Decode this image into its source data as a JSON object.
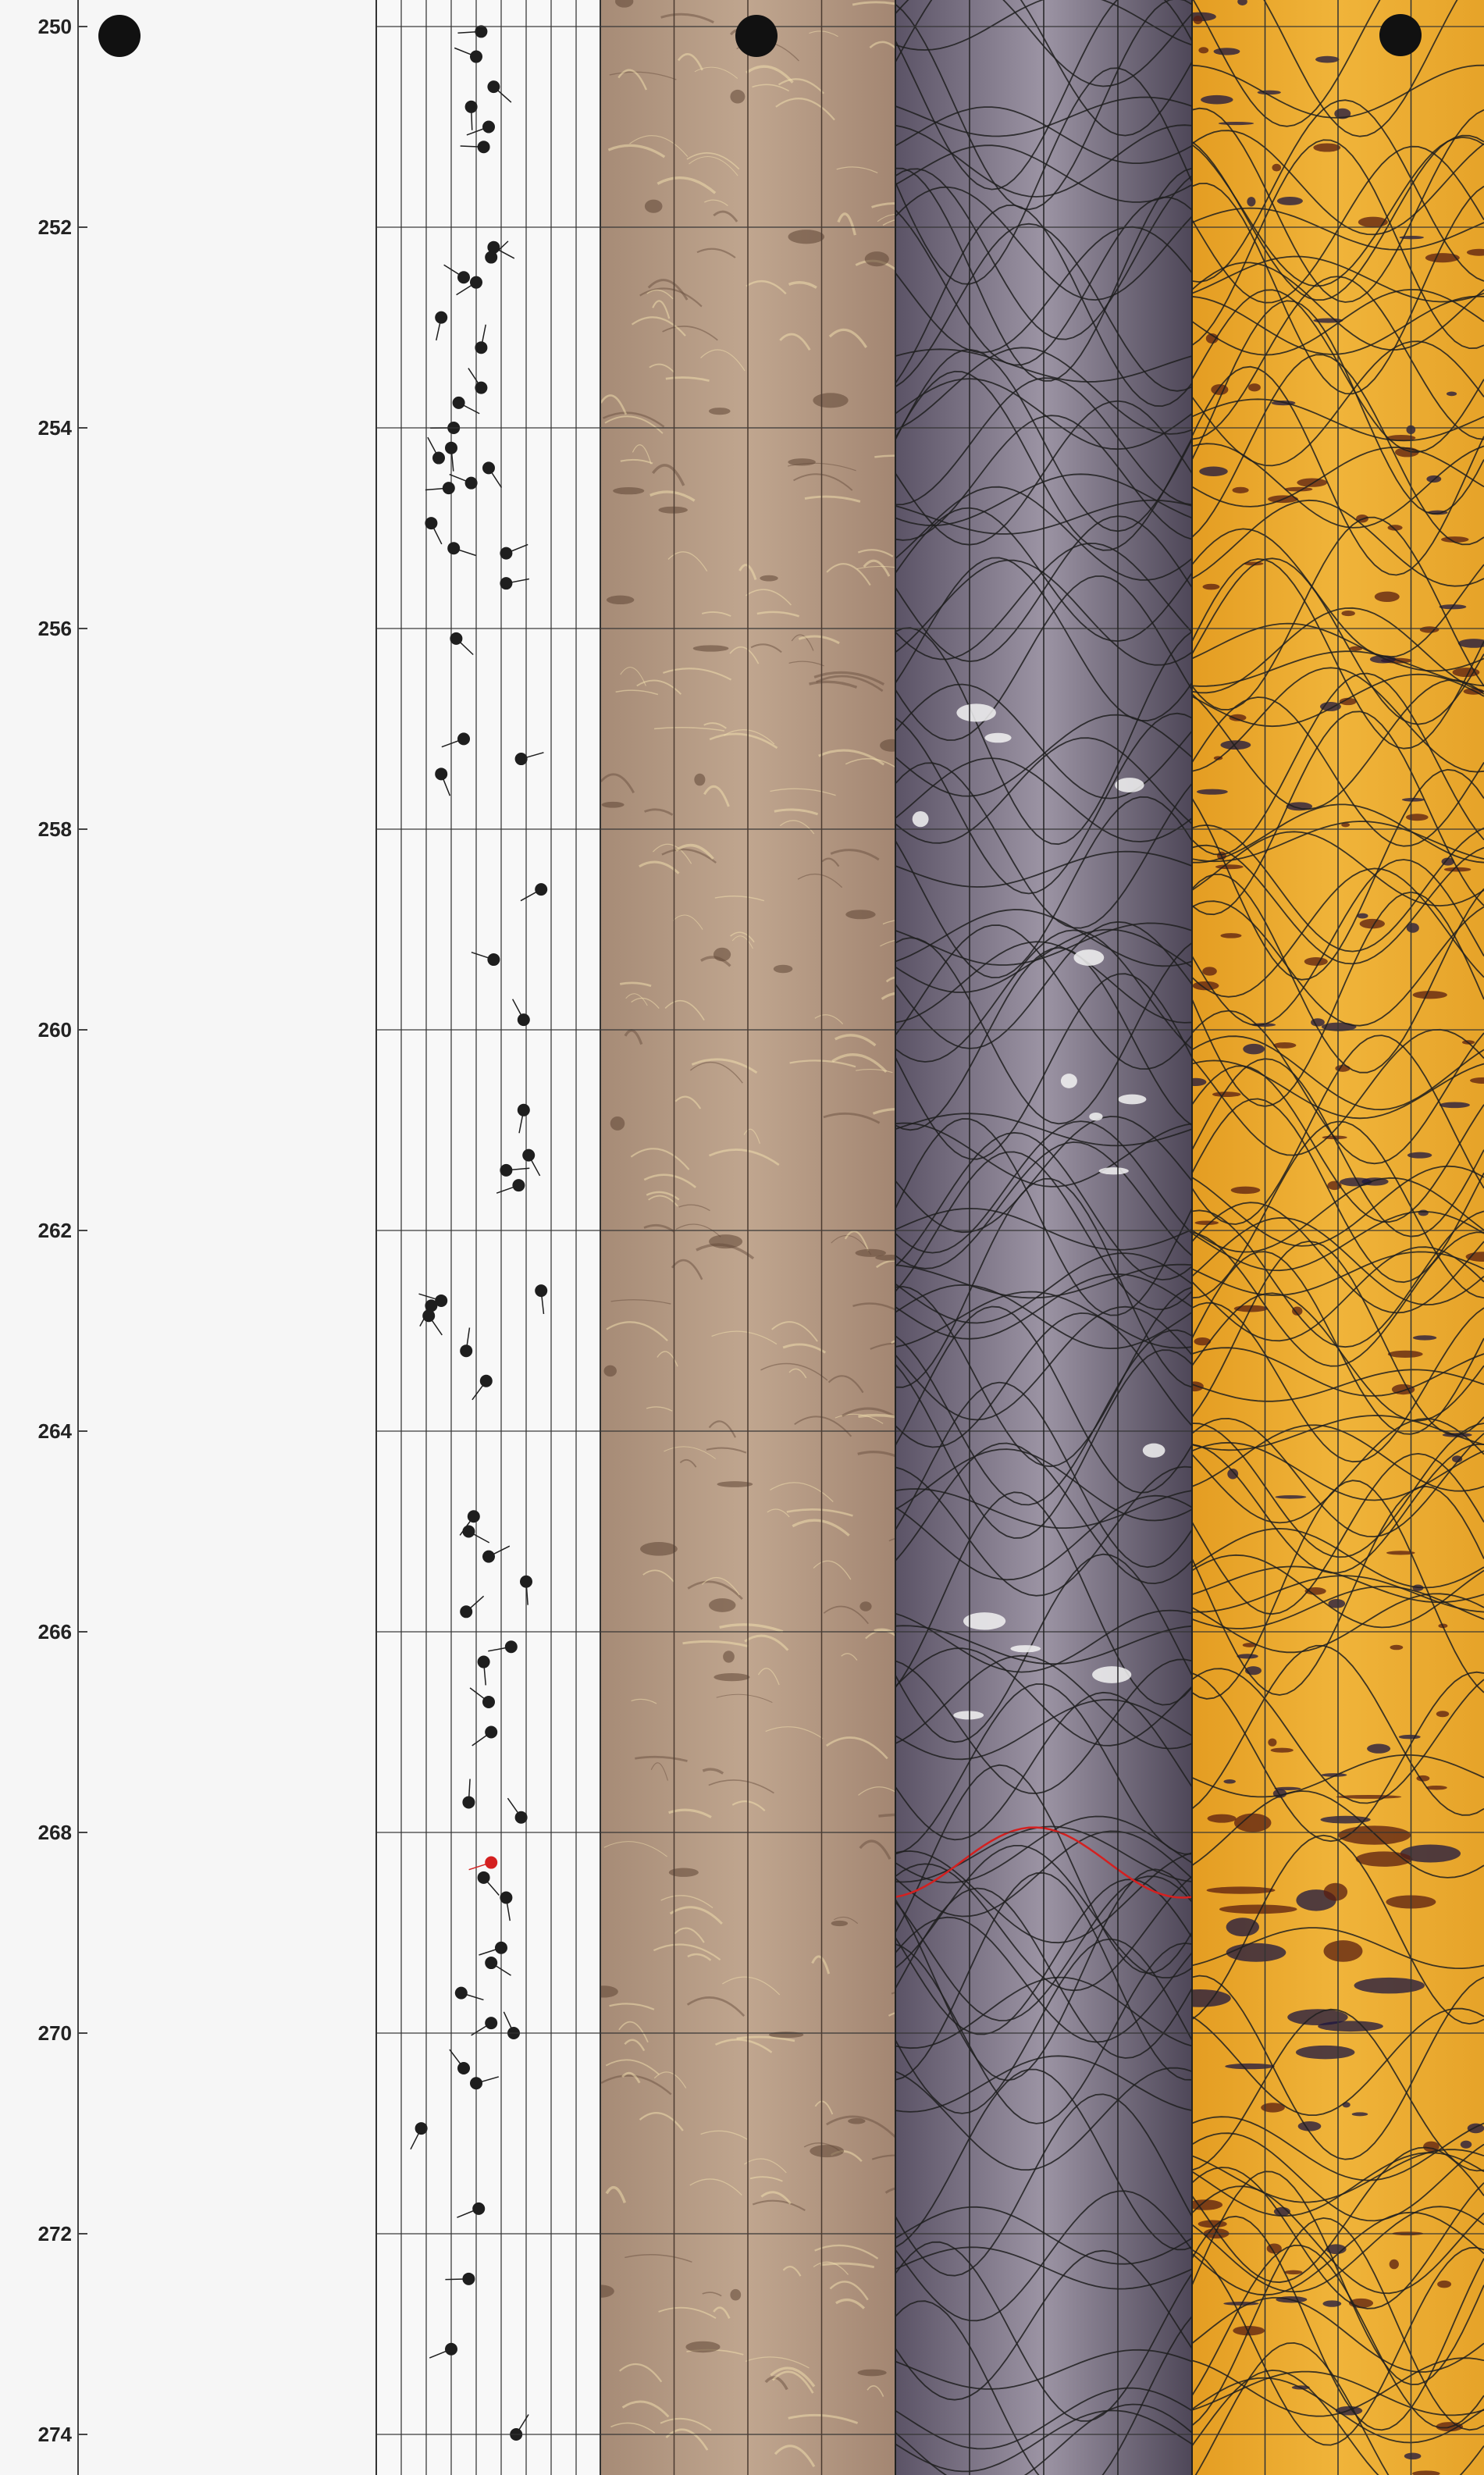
{
  "chart_data": {
    "type": "scatter",
    "title": "",
    "ylabel": "",
    "ylim": [
      250,
      274.5
    ],
    "y_ticks": [
      "250",
      "252",
      "254",
      "256",
      "258",
      "260",
      "262",
      "264",
      "266",
      "268",
      "270",
      "272",
      "274"
    ],
    "tracks": [
      "depth",
      "tadpole",
      "amplitude-image",
      "travel-time-image",
      "resistivity-image"
    ],
    "series": [
      {
        "values": [
          {
            "depth": 250.05,
            "dip": 42
          },
          {
            "depth": 250.3,
            "dip": 40
          },
          {
            "depth": 250.6,
            "dip": 47
          },
          {
            "depth": 250.8,
            "dip": 38
          },
          {
            "depth": 251.0,
            "dip": 45
          },
          {
            "depth": 251.2,
            "dip": 43
          },
          {
            "depth": 252.2,
            "dip": 47
          },
          {
            "depth": 252.3,
            "dip": 46
          },
          {
            "depth": 252.5,
            "dip": 35
          },
          {
            "depth": 252.55,
            "dip": 40
          },
          {
            "depth": 252.9,
            "dip": 26
          },
          {
            "depth": 253.2,
            "dip": 42
          },
          {
            "depth": 253.6,
            "dip": 42
          },
          {
            "depth": 253.75,
            "dip": 33
          },
          {
            "depth": 254.0,
            "dip": 31
          },
          {
            "depth": 254.2,
            "dip": 30
          },
          {
            "depth": 254.3,
            "dip": 25
          },
          {
            "depth": 254.4,
            "dip": 45
          },
          {
            "depth": 254.55,
            "dip": 38
          },
          {
            "depth": 254.6,
            "dip": 29
          },
          {
            "depth": 254.95,
            "dip": 22
          },
          {
            "depth": 255.2,
            "dip": 31
          },
          {
            "depth": 255.25,
            "dip": 52
          },
          {
            "depth": 255.55,
            "dip": 52
          },
          {
            "depth": 256.1,
            "dip": 32
          },
          {
            "depth": 257.1,
            "dip": 35
          },
          {
            "depth": 257.3,
            "dip": 58
          },
          {
            "depth": 257.45,
            "dip": 26
          },
          {
            "depth": 258.6,
            "dip": 66
          },
          {
            "depth": 259.3,
            "dip": 47
          },
          {
            "depth": 259.9,
            "dip": 59
          },
          {
            "depth": 260.8,
            "dip": 59
          },
          {
            "depth": 261.25,
            "dip": 61
          },
          {
            "depth": 261.4,
            "dip": 52
          },
          {
            "depth": 261.55,
            "dip": 57
          },
          {
            "depth": 262.6,
            "dip": 66
          },
          {
            "depth": 262.7,
            "dip": 26
          },
          {
            "depth": 262.75,
            "dip": 22
          },
          {
            "depth": 262.85,
            "dip": 21
          },
          {
            "depth": 263.2,
            "dip": 36
          },
          {
            "depth": 263.5,
            "dip": 44
          },
          {
            "depth": 264.85,
            "dip": 39
          },
          {
            "depth": 265.0,
            "dip": 37
          },
          {
            "depth": 265.25,
            "dip": 45
          },
          {
            "depth": 265.5,
            "dip": 60
          },
          {
            "depth": 265.8,
            "dip": 36
          },
          {
            "depth": 266.15,
            "dip": 54
          },
          {
            "depth": 266.3,
            "dip": 43
          },
          {
            "depth": 266.7,
            "dip": 45
          },
          {
            "depth": 267.0,
            "dip": 46
          },
          {
            "depth": 267.7,
            "dip": 37
          },
          {
            "depth": 267.85,
            "dip": 58
          },
          {
            "depth": 268.45,
            "dip": 43
          },
          {
            "depth": 268.65,
            "dip": 52
          },
          {
            "depth": 269.15,
            "dip": 50
          },
          {
            "depth": 269.3,
            "dip": 46
          },
          {
            "depth": 269.6,
            "dip": 34
          },
          {
            "depth": 269.9,
            "dip": 46
          },
          {
            "depth": 270.0,
            "dip": 55
          },
          {
            "depth": 270.35,
            "dip": 35
          },
          {
            "depth": 270.5,
            "dip": 40
          },
          {
            "depth": 270.95,
            "dip": 18
          },
          {
            "depth": 271.75,
            "dip": 41
          },
          {
            "depth": 272.45,
            "dip": 37
          },
          {
            "depth": 273.15,
            "dip": 30
          },
          {
            "depth": 274.0,
            "dip": 56
          }
        ]
      },
      {
        "color": "#d42020",
        "values": [
          {
            "depth": 268.3,
            "dip": 46
          }
        ]
      }
    ],
    "grid": true,
    "colors": {
      "amplitude_image": "#b59a86",
      "travel_time_image": "#7d7486",
      "resistivity_image": "#e8a82e",
      "tadpole": "#1e1e1e",
      "highlight": "#d42020"
    }
  }
}
